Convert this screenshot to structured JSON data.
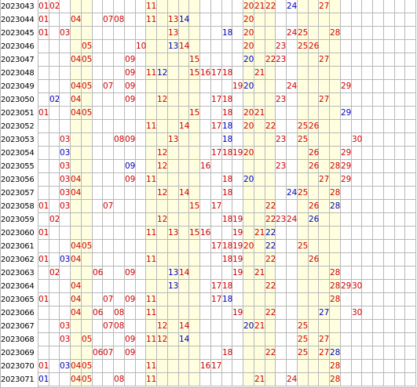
{
  "table": {
    "columns": 35,
    "highlight_columns": [
      4,
      5,
      11,
      12,
      13,
      14,
      15,
      20,
      21,
      22,
      25,
      26,
      27,
      28
    ],
    "colors": {
      "red": "#d00000",
      "blue": "#0000c0",
      "highlight": "#ffffe0",
      "grid": "#b8b8b8"
    },
    "rows": [
      {
        "issue": "2023043",
        "red": [
          1,
          2,
          11,
          20,
          21,
          22,
          27
        ],
        "blue": [
          24
        ]
      },
      {
        "issue": "2023044",
        "red": [
          1,
          4,
          7,
          8,
          11,
          13,
          20
        ],
        "blue": [
          14
        ]
      },
      {
        "issue": "2023045",
        "red": [
          1,
          3,
          13,
          20,
          24,
          25,
          28
        ],
        "blue": [
          18
        ]
      },
      {
        "issue": "2023046",
        "red": [
          5,
          10,
          14,
          20,
          23,
          25,
          26
        ],
        "blue": [
          13
        ]
      },
      {
        "issue": "2023047",
        "red": [
          4,
          5,
          9,
          15,
          22,
          23,
          27
        ],
        "blue": [
          20
        ]
      },
      {
        "issue": "2023048",
        "red": [
          9,
          11,
          15,
          16,
          17,
          18,
          21
        ],
        "blue": [
          12
        ]
      },
      {
        "issue": "2023049",
        "red": [
          4,
          5,
          7,
          9,
          19,
          24,
          29
        ],
        "blue": [
          20
        ]
      },
      {
        "issue": "2023050",
        "red": [
          4,
          9,
          12,
          17,
          18,
          23,
          27
        ],
        "blue": [
          2
        ]
      },
      {
        "issue": "2023051",
        "red": [
          1,
          4,
          5,
          15,
          18,
          20,
          21
        ],
        "blue": [
          29
        ]
      },
      {
        "issue": "2023052",
        "red": [
          11,
          14,
          17,
          20,
          22,
          25,
          26
        ],
        "blue": [
          18
        ]
      },
      {
        "issue": "2023053",
        "red": [
          3,
          8,
          9,
          13,
          23,
          25,
          30
        ],
        "blue": [
          18
        ]
      },
      {
        "issue": "2023054",
        "red": [
          12,
          17,
          18,
          19,
          20,
          26,
          29
        ],
        "blue": [
          3
        ]
      },
      {
        "issue": "2023055",
        "red": [
          3,
          12,
          16,
          23,
          26,
          28,
          29
        ],
        "blue": [
          9
        ]
      },
      {
        "issue": "2023056",
        "red": [
          3,
          4,
          9,
          11,
          18,
          27,
          29
        ],
        "blue": [
          20
        ]
      },
      {
        "issue": "2023057",
        "red": [
          3,
          4,
          12,
          14,
          18,
          25,
          28
        ],
        "blue": [
          24
        ]
      },
      {
        "issue": "2023058",
        "red": [
          1,
          3,
          7,
          15,
          17,
          22,
          26
        ],
        "blue": [
          28
        ]
      },
      {
        "issue": "2023059",
        "red": [
          2,
          12,
          18,
          19,
          22,
          23,
          24
        ],
        "blue": [
          26
        ]
      },
      {
        "issue": "2023060",
        "red": [
          1,
          11,
          13,
          15,
          16,
          19,
          21
        ],
        "blue": [
          22
        ]
      },
      {
        "issue": "2023061",
        "red": [
          4,
          5,
          17,
          18,
          19,
          20,
          25
        ],
        "blue": [
          22
        ]
      },
      {
        "issue": "2023062",
        "red": [
          1,
          4,
          11,
          18,
          19,
          22,
          26
        ],
        "blue": [
          3
        ]
      },
      {
        "issue": "2023063",
        "red": [
          2,
          6,
          9,
          14,
          19,
          21,
          28
        ],
        "blue": [
          13
        ]
      },
      {
        "issue": "2023064",
        "red": [
          4,
          17,
          18,
          22,
          28,
          29,
          30
        ],
        "blue": [
          13
        ]
      },
      {
        "issue": "2023065",
        "red": [
          1,
          4,
          7,
          9,
          11,
          17,
          28
        ],
        "blue": [
          18
        ]
      },
      {
        "issue": "2023066",
        "red": [
          4,
          6,
          8,
          11,
          19,
          22,
          30
        ],
        "blue": [
          27
        ]
      },
      {
        "issue": "2023067",
        "red": [
          3,
          7,
          8,
          12,
          14,
          21,
          25
        ],
        "blue": [
          20
        ]
      },
      {
        "issue": "2023068",
        "red": [
          3,
          5,
          9,
          11,
          12,
          25,
          27
        ],
        "blue": [
          14
        ]
      },
      {
        "issue": "2023069",
        "red": [
          6,
          7,
          9,
          18,
          22,
          25,
          27
        ],
        "blue": [
          28
        ]
      },
      {
        "issue": "2023070",
        "red": [
          1,
          4,
          5,
          11,
          16,
          17,
          28
        ],
        "blue": [
          3
        ]
      },
      {
        "issue": "2023071",
        "red": [
          4,
          5,
          8,
          11,
          21,
          24,
          28
        ],
        "blue": [
          1
        ]
      }
    ]
  }
}
